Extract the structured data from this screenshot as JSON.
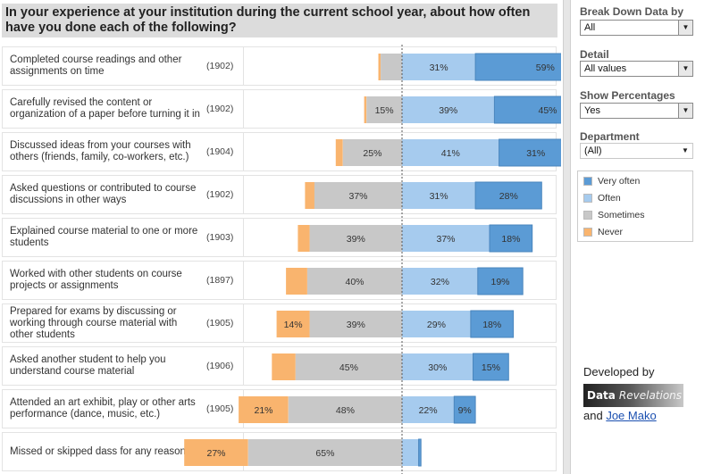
{
  "title": "In your experience at your institution during the current school year, about how often have you done each of the following?",
  "chart_data": {
    "type": "bar",
    "stacked": "diverging",
    "series_order": [
      "Never",
      "Sometimes",
      "Often",
      "Very often"
    ],
    "colors": {
      "Never": "#f9b46e",
      "Sometimes": "#c8c8c8",
      "Often": "#a6cbee",
      "Very often": "#5b9bd5"
    },
    "rows": [
      {
        "label": "Completed course readings and other assignments on time",
        "n": "(1902)",
        "never": 1,
        "sometimes": 9,
        "often": 31,
        "very_often": 59,
        "labels": {
          "never": "",
          "sometimes": "",
          "often": "31%",
          "very_often": "59%"
        }
      },
      {
        "label": "Carefully revised the content or organization of a paper before turning it in",
        "n": "(1902)",
        "never": 1,
        "sometimes": 15,
        "often": 39,
        "very_often": 45,
        "labels": {
          "never": "",
          "sometimes": "15%",
          "often": "39%",
          "very_often": "45%"
        }
      },
      {
        "label": "Discussed ideas from your courses with others (friends, family, co-workers, etc.)",
        "n": "(1904)",
        "never": 3,
        "sometimes": 25,
        "often": 41,
        "very_often": 31,
        "labels": {
          "never": "",
          "sometimes": "25%",
          "often": "41%",
          "very_often": "31%"
        }
      },
      {
        "label": "Asked questions or contributed to course discussions in other ways",
        "n": "(1902)",
        "never": 4,
        "sometimes": 37,
        "often": 31,
        "very_often": 28,
        "labels": {
          "never": "",
          "sometimes": "37%",
          "often": "31%",
          "very_often": "28%"
        }
      },
      {
        "label": "Explained course material to one or more students",
        "n": "(1903)",
        "never": 5,
        "sometimes": 39,
        "often": 37,
        "very_often": 18,
        "labels": {
          "never": "",
          "sometimes": "39%",
          "often": "37%",
          "very_often": "18%"
        }
      },
      {
        "label": "Worked with other students on course projects or assignments",
        "n": "(1897)",
        "never": 9,
        "sometimes": 40,
        "often": 32,
        "very_often": 19,
        "labels": {
          "never": "",
          "sometimes": "40%",
          "often": "32%",
          "very_often": "19%"
        }
      },
      {
        "label": "Prepared for exams by discussing or working through course material with other students",
        "n": "(1905)",
        "never": 14,
        "sometimes": 39,
        "often": 29,
        "very_often": 18,
        "labels": {
          "never": "14%",
          "sometimes": "39%",
          "often": "29%",
          "very_often": "18%"
        }
      },
      {
        "label": "Asked another student to help you understand course material",
        "n": "(1906)",
        "never": 10,
        "sometimes": 45,
        "often": 30,
        "very_often": 15,
        "labels": {
          "never": "",
          "sometimes": "45%",
          "often": "30%",
          "very_often": "15%"
        }
      },
      {
        "label": "Attended an art exhibit, play or other arts performance (dance, music, etc.)",
        "n": "(1905)",
        "never": 21,
        "sometimes": 48,
        "often": 22,
        "very_often": 9,
        "labels": {
          "never": "21%",
          "sometimes": "48%",
          "often": "22%",
          "very_often": "9%"
        }
      },
      {
        "label": "Missed or skipped dass for any reason",
        "n": "(1896)",
        "never": 27,
        "sometimes": 65,
        "often": 7,
        "very_often": 1,
        "labels": {
          "never": "27%",
          "sometimes": "65%",
          "often": "",
          "very_often": ""
        }
      }
    ]
  },
  "controls": {
    "breakdown_label": "Break Down Data by",
    "breakdown_value": "All",
    "detail_label": "Detail",
    "detail_value": "All values",
    "showpct_label": "Show Percentages",
    "showpct_value": "Yes",
    "department_label": "Department",
    "department_value": "(All)"
  },
  "legend": {
    "items": [
      {
        "label": "Very often",
        "color": "#5b9bd5"
      },
      {
        "label": "Often",
        "color": "#a6cbee"
      },
      {
        "label": "Sometimes",
        "color": "#c8c8c8"
      },
      {
        "label": "Never",
        "color": "#f9b46e"
      }
    ]
  },
  "credits": {
    "developed_by": "Developed by",
    "logo_data": "Data",
    "logo_rev": "Revelations",
    "and": "and",
    "author": "Joe Mako"
  }
}
